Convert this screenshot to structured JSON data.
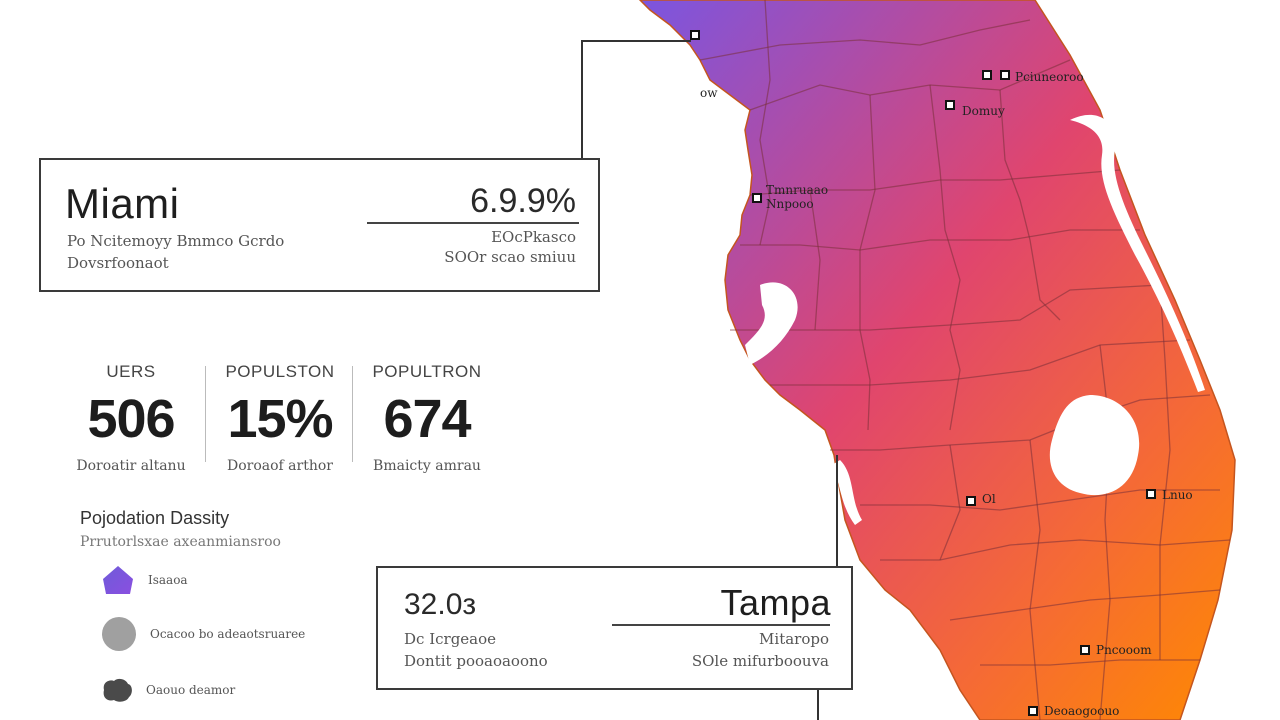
{
  "colors": {
    "gradient_start": "#7b55e0",
    "gradient_mid": "#e0456e",
    "gradient_end": "#ff8a00",
    "line": "#333333"
  },
  "callout_miami": {
    "city": "Miami",
    "percent": "6.9.9%",
    "left_line1": "Po Ncitemoyy Bmmco Gcrdo",
    "left_line2": "Dovsrfoonaot",
    "right_line1": "EOcPkasco",
    "right_line2": "SOOr scao smiuu"
  },
  "stats": [
    {
      "label": "UERS",
      "value": "506",
      "sub": "Doroatir altanu"
    },
    {
      "label": "POPULSTON",
      "value": "15%",
      "sub": "Doroaof arthor"
    },
    {
      "label": "POPULTRON",
      "value": "674",
      "sub": "Bmaicty amrau"
    }
  ],
  "legend": {
    "title": "Pojodation Dassity",
    "subtitle": "Prrutorlsxae axeanmiansroo",
    "items": [
      {
        "label": "Isaaoa",
        "icon": "house-icon"
      },
      {
        "label": "Ocacoo bo adeaotsruaree",
        "icon": "circle-icon"
      },
      {
        "label": "Oaouo deamor",
        "icon": "blob-icon"
      }
    ]
  },
  "callout_tampa": {
    "city": "Tampa",
    "number": "32.0з",
    "left_line1": "Dc Icrgeaoe",
    "left_line2": "Dontit pooaoaoono",
    "right_line1": "Mitaropo",
    "right_line2": "SOle mifurboouva"
  },
  "map": {
    "cities": [
      {
        "id": "nw",
        "label": ""
      },
      {
        "id": "n1",
        "label": "ow"
      },
      {
        "id": "jax",
        "label": "Pciuneoroo"
      },
      {
        "id": "n2",
        "label": "Domuy"
      },
      {
        "id": "w1",
        "label": "Tmnruaao"
      },
      {
        "id": "w2",
        "label": "Nnpooo"
      },
      {
        "id": "c1",
        "label": "Ol"
      },
      {
        "id": "e1",
        "label": "Lnuo"
      },
      {
        "id": "s1",
        "label": "Pncooom"
      },
      {
        "id": "s2",
        "label": "Deoaogoouo"
      }
    ]
  }
}
